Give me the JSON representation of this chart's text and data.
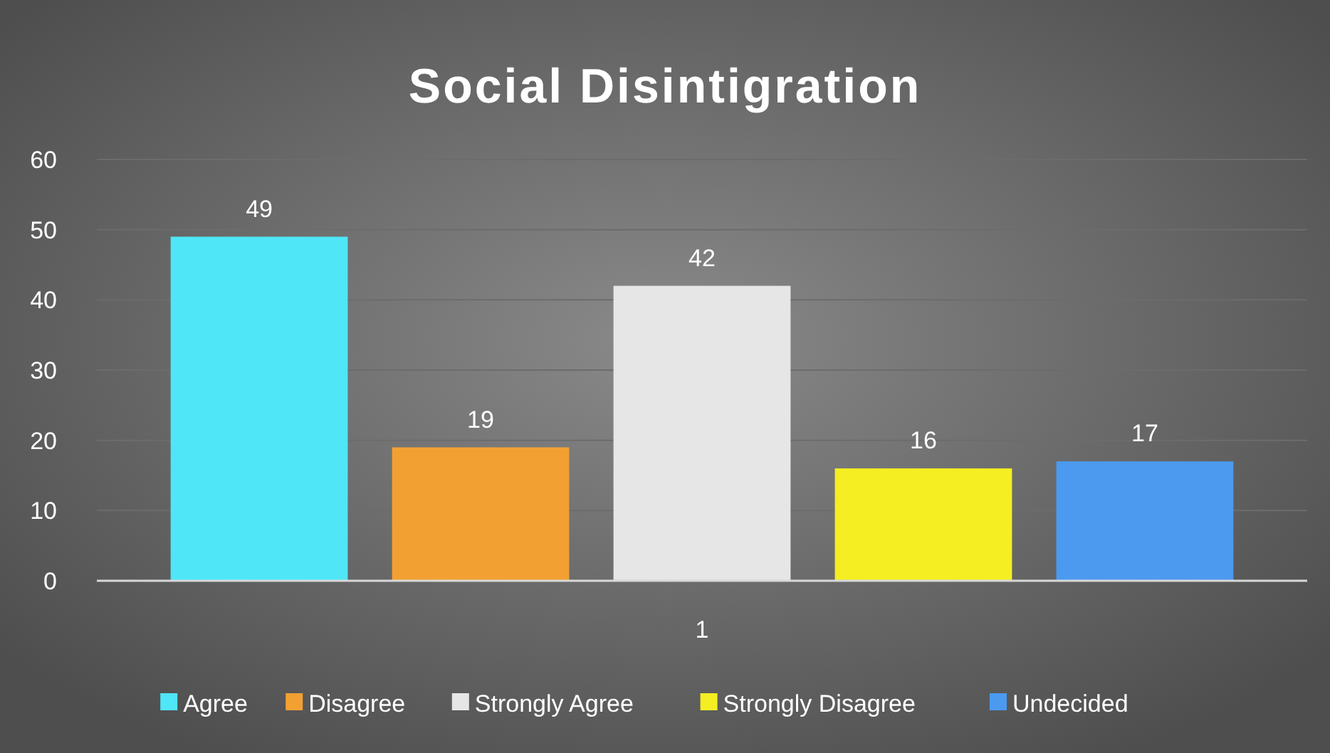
{
  "chart_data": {
    "type": "bar",
    "title": "Social  Disintigration",
    "categories": [
      "1"
    ],
    "series": [
      {
        "name": "Agree",
        "color": "#4fe6f7",
        "values": [
          49
        ]
      },
      {
        "name": "Disagree",
        "color": "#f3a033",
        "values": [
          19
        ]
      },
      {
        "name": "Strongly Agree",
        "color": "#e6e6e6",
        "values": [
          42
        ]
      },
      {
        "name": "Strongly Disagree",
        "color": "#f4ee22",
        "values": [
          16
        ]
      },
      {
        "name": "Undecided",
        "color": "#4b9af0",
        "values": [
          17
        ]
      }
    ],
    "ylim": [
      0,
      60
    ],
    "yticks": [
      0,
      10,
      20,
      30,
      40,
      50,
      60
    ],
    "grid": "y",
    "legend": "bottom",
    "data_labels": true
  }
}
